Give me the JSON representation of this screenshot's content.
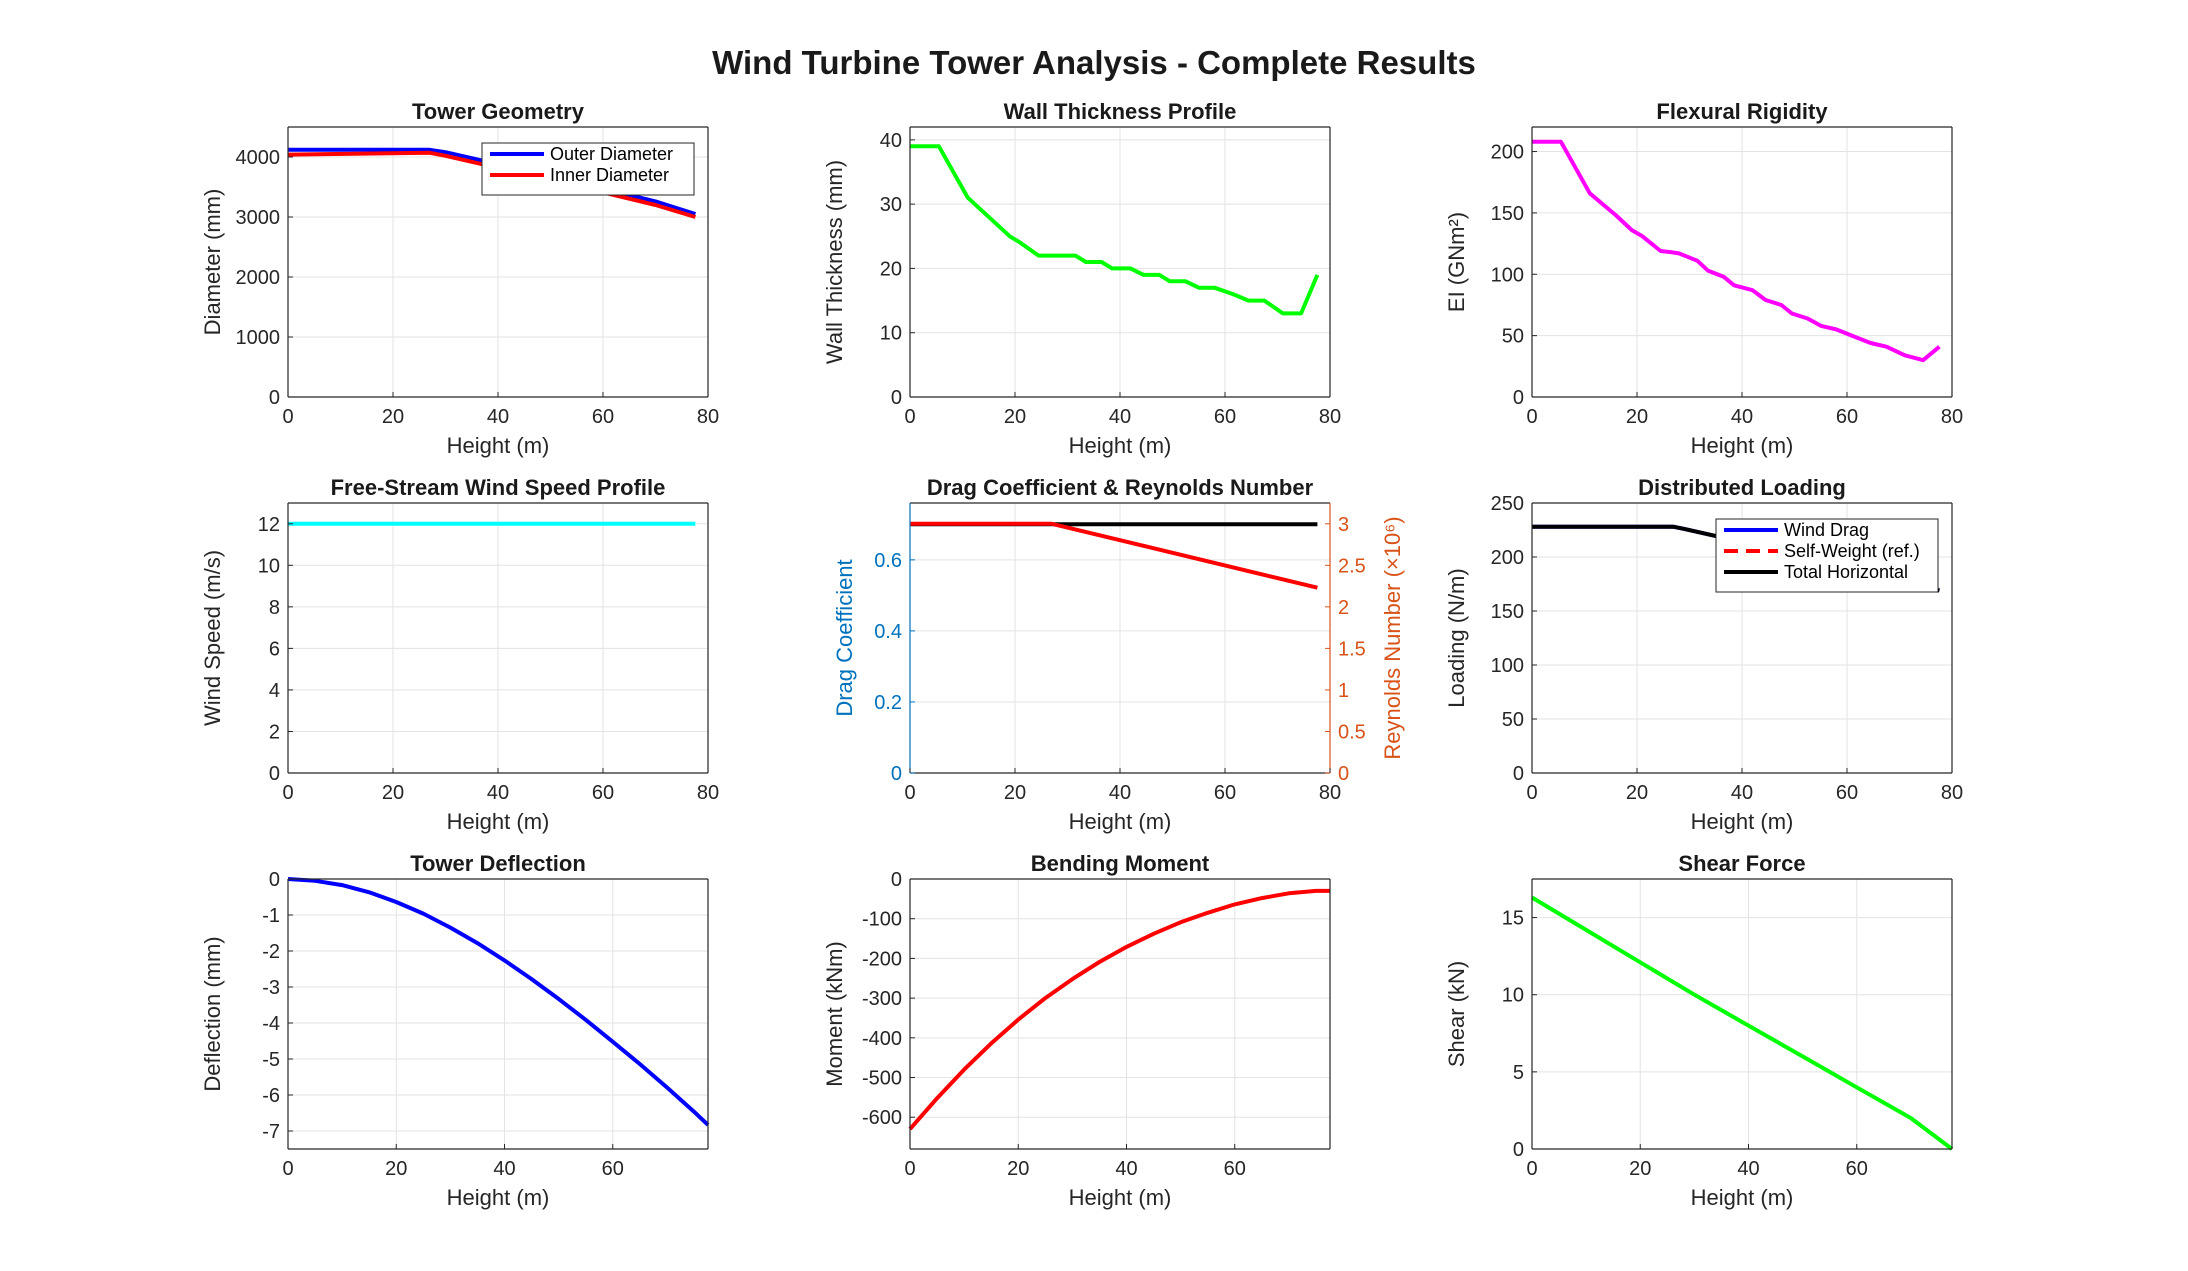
{
  "figure": {
    "title": "Wind Turbine Tower Analysis - Complete Results"
  },
  "chart_data": [
    {
      "id": "geometry",
      "type": "line",
      "title": "Tower Geometry",
      "xlabel": "Height (m)",
      "ylabel": "Diameter (mm)",
      "xlim": [
        0,
        80
      ],
      "ylim": [
        0,
        4500
      ],
      "xticks": [
        0,
        20,
        40,
        60,
        80
      ],
      "yticks": [
        0,
        1000,
        2000,
        3000,
        4000
      ],
      "grid": true,
      "legend": "top-right",
      "series": [
        {
          "name": "Outer Diameter",
          "color": "#0000ff",
          "x": [
            0,
            27,
            30,
            40,
            50,
            60,
            70,
            77.6
          ],
          "y": [
            4120,
            4120,
            4080,
            3880,
            3680,
            3470,
            3260,
            3050
          ]
        },
        {
          "name": "Inner Diameter",
          "color": "#ff0000",
          "x": [
            0,
            27,
            30,
            40,
            50,
            60,
            70,
            77.6
          ],
          "y": [
            4040,
            4070,
            4020,
            3820,
            3620,
            3410,
            3200,
            3000
          ]
        }
      ]
    },
    {
      "id": "thickness",
      "type": "line",
      "title": "Wall Thickness Profile",
      "xlabel": "Height (m)",
      "ylabel": "Wall Thickness (mm)",
      "xlim": [
        0,
        80
      ],
      "ylim": [
        0,
        42
      ],
      "xticks": [
        0,
        20,
        40,
        60,
        80
      ],
      "yticks": [
        0,
        10,
        20,
        30,
        40
      ],
      "grid": true,
      "series": [
        {
          "name": "",
          "color": "#00ff00",
          "x": [
            0,
            5.5,
            11,
            19,
            21,
            24.5,
            31.5,
            33.5,
            36.5,
            38.5,
            42,
            44.5,
            47.5,
            49.5,
            52.5,
            55,
            58,
            61.5,
            64.5,
            67.5,
            71,
            74.5,
            77.6
          ],
          "y": [
            39,
            39,
            31,
            25,
            24,
            22,
            22,
            21,
            21,
            20,
            20,
            19,
            19,
            18,
            18,
            17,
            17,
            16,
            15,
            15,
            13,
            13,
            19
          ]
        }
      ]
    },
    {
      "id": "rigidity",
      "type": "line",
      "title": "Flexural Rigidity",
      "xlabel": "Height (m)",
      "ylabel": "EI  (GNm²)",
      "xlim": [
        0,
        80
      ],
      "ylim": [
        0,
        220
      ],
      "xticks": [
        0,
        20,
        40,
        60,
        80
      ],
      "yticks": [
        0,
        50,
        100,
        150,
        200
      ],
      "grid": true,
      "series": [
        {
          "name": "",
          "color": "#ff00ff",
          "x": [
            0,
            5.5,
            11,
            16,
            19,
            21,
            24.5,
            26.5,
            28,
            31.5,
            33.5,
            36.5,
            38.5,
            42,
            44.5,
            47.5,
            49.5,
            52.5,
            55,
            58,
            61.5,
            64.5,
            67.5,
            71,
            74.5,
            77.6
          ],
          "y": [
            208,
            208,
            166,
            148,
            136,
            131,
            119,
            118,
            117,
            111,
            103,
            98,
            91,
            87,
            79,
            75,
            68,
            64,
            58,
            55,
            49,
            44,
            41,
            34,
            30,
            41
          ]
        }
      ]
    },
    {
      "id": "windspeed",
      "type": "line",
      "title": "Free-Stream Wind Speed Profile",
      "xlabel": "Height (m)",
      "ylabel": "Wind Speed (m/s)",
      "xlim": [
        0,
        80
      ],
      "ylim": [
        0,
        13
      ],
      "xticks": [
        0,
        20,
        40,
        60,
        80
      ],
      "yticks": [
        0,
        2,
        4,
        6,
        8,
        10,
        12
      ],
      "grid": true,
      "series": [
        {
          "name": "",
          "color": "#00ffff",
          "x": [
            0,
            77.6
          ],
          "y": [
            12,
            12
          ]
        }
      ]
    },
    {
      "id": "drag",
      "type": "line",
      "title": "Drag Coefficient & Reynolds Number",
      "xlabel": "Height (m)",
      "ylabel": "Drag Coefficient",
      "ylabel_right": "Reynolds  Number  (×10⁶)",
      "xlim": [
        0,
        80
      ],
      "ylim": [
        0,
        0.76
      ],
      "ylim_right": [
        0,
        3.25
      ],
      "xticks": [
        0,
        20,
        40,
        60,
        80
      ],
      "yticks": [
        0,
        0.2,
        0.4,
        0.6
      ],
      "yticks_right": [
        0,
        0.5,
        1,
        1.5,
        2,
        2.5,
        3
      ],
      "left_color": "#0072bd",
      "right_color": "#d95319",
      "grid": true,
      "series": [
        {
          "name": "",
          "axis": "left",
          "color": "#000000",
          "x": [
            0,
            77.6
          ],
          "y": [
            0.7,
            0.7
          ]
        },
        {
          "name": "",
          "axis": "right",
          "color": "#ff0000",
          "x": [
            0,
            27,
            77.6
          ],
          "y": [
            3.0,
            3.0,
            2.23
          ]
        }
      ]
    },
    {
      "id": "loading",
      "type": "line",
      "title": "Distributed Loading",
      "xlabel": "Height (m)",
      "ylabel": "Loading (N/m)",
      "xlim": [
        0,
        80
      ],
      "ylim": [
        0,
        250
      ],
      "xticks": [
        0,
        20,
        40,
        60,
        80
      ],
      "yticks": [
        0,
        50,
        100,
        150,
        200,
        250
      ],
      "grid": true,
      "legend": "top-right",
      "series": [
        {
          "name": "Wind Drag",
          "color": "#0000ff",
          "style": "solid",
          "x": [
            0,
            27,
            29,
            40,
            50,
            60,
            70,
            75,
            77.6
          ],
          "y": [
            228,
            228,
            226,
            214,
            204,
            193,
            182,
            172,
            169
          ]
        },
        {
          "name": "Self-Weight (ref.)",
          "color": "#ff0000",
          "style": "dashed",
          "x": [],
          "y": []
        },
        {
          "name": "Total Horizontal",
          "color": "#000000",
          "style": "solid",
          "x": [
            0,
            27,
            29,
            40,
            50,
            60,
            70,
            75,
            77.6
          ],
          "y": [
            228,
            228,
            226,
            214,
            204,
            193,
            182,
            172,
            169
          ]
        }
      ]
    },
    {
      "id": "deflection",
      "type": "line",
      "title": "Tower Deflection",
      "xlabel": "Height (m)",
      "ylabel": "Deflection (mm)",
      "xlim": [
        0,
        77.6
      ],
      "ylim": [
        -7.5,
        0
      ],
      "xticks": [
        0,
        20,
        40,
        60
      ],
      "yticks": [
        -7,
        -6,
        -5,
        -4,
        -3,
        -2,
        -1,
        0
      ],
      "grid": true,
      "series": [
        {
          "name": "",
          "color": "#0000ff",
          "x": [
            0,
            5,
            10,
            15,
            20,
            25,
            30,
            35,
            40,
            45,
            50,
            55,
            60,
            65,
            70,
            75,
            77.6
          ],
          "y": [
            0,
            -0.05,
            -0.17,
            -0.37,
            -0.64,
            -0.96,
            -1.35,
            -1.78,
            -2.26,
            -2.78,
            -3.33,
            -3.91,
            -4.52,
            -5.14,
            -5.79,
            -6.46,
            -6.83
          ]
        }
      ]
    },
    {
      "id": "moment",
      "type": "line",
      "title": "Bending Moment",
      "xlabel": "Height (m)",
      "ylabel": "Moment (kNm)",
      "xlim": [
        0,
        77.6
      ],
      "ylim": [
        -680,
        0
      ],
      "xticks": [
        0,
        20,
        40,
        60
      ],
      "yticks": [
        -600,
        -500,
        -400,
        -300,
        -200,
        -100,
        0
      ],
      "grid": true,
      "series": [
        {
          "name": "",
          "color": "#ff0000",
          "x": [
            0,
            5,
            10,
            15,
            20,
            25,
            30,
            35,
            40,
            45,
            50,
            55,
            60,
            65,
            70,
            75,
            77.6
          ],
          "y": [
            -630,
            -552,
            -480,
            -414,
            -354,
            -300,
            -252,
            -209,
            -171,
            -138,
            -109,
            -85,
            -64,
            -48,
            -36,
            -30,
            -30
          ]
        }
      ]
    },
    {
      "id": "shear",
      "type": "line",
      "title": "Shear Force",
      "xlabel": "Height (m)",
      "ylabel": "Shear (kN)",
      "xlim": [
        0,
        77.6
      ],
      "ylim": [
        0,
        17.5
      ],
      "xticks": [
        0,
        20,
        40,
        60
      ],
      "yticks": [
        0,
        5,
        10,
        15
      ],
      "grid": true,
      "series": [
        {
          "name": "",
          "color": "#00ff00",
          "x": [
            0,
            10,
            20,
            30,
            40,
            50,
            60,
            70,
            77.6
          ],
          "y": [
            16.3,
            14.2,
            12.1,
            10.0,
            8.0,
            6.0,
            4.0,
            2.0,
            0
          ]
        }
      ]
    }
  ]
}
